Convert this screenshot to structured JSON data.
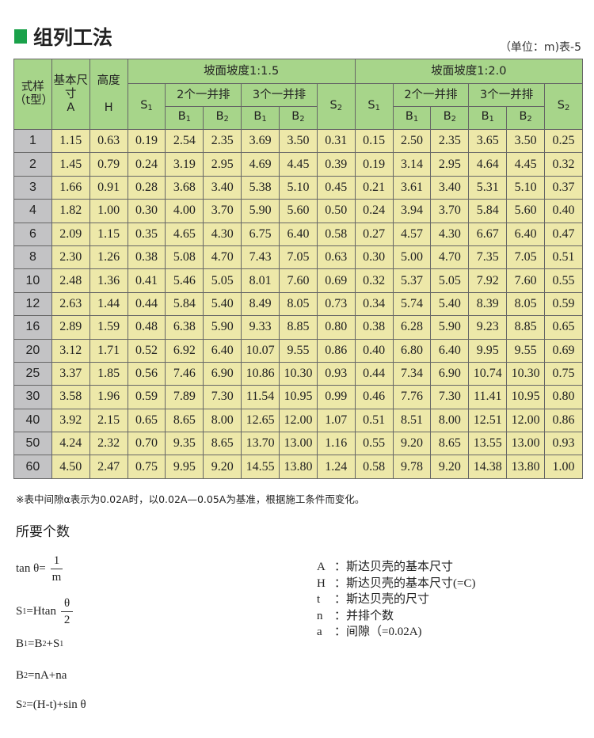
{
  "title": "组列工法",
  "unit_label": "（单位：m)表-5",
  "colors": {
    "accent": "#1aa14a",
    "header_bg": "#a7d58a",
    "cell_bg": "#ede8a9",
    "first_col_bg": "#c3c3c5"
  },
  "table": {
    "headers": {
      "type": "式样（t型）",
      "size_top": "基本尺寸",
      "size_sym": "A",
      "height_top": "高度",
      "height_sym": "H",
      "slope1": "坡面坡度1:1.5",
      "slope2": "坡面坡度1:2.0",
      "row2": "2个一并排",
      "row3": "3个一并排",
      "S": "S",
      "B": "B",
      "one": "1",
      "two": "2"
    },
    "rows": [
      [
        "1",
        "1.15",
        "0.63",
        "0.19",
        "2.54",
        "2.35",
        "3.69",
        "3.50",
        "0.31",
        "0.15",
        "2.50",
        "2.35",
        "3.65",
        "3.50",
        "0.25"
      ],
      [
        "2",
        "1.45",
        "0.79",
        "0.24",
        "3.19",
        "2.95",
        "4.69",
        "4.45",
        "0.39",
        "0.19",
        "3.14",
        "2.95",
        "4.64",
        "4.45",
        "0.32"
      ],
      [
        "3",
        "1.66",
        "0.91",
        "0.28",
        "3.68",
        "3.40",
        "5.38",
        "5.10",
        "0.45",
        "0.21",
        "3.61",
        "3.40",
        "5.31",
        "5.10",
        "0.37"
      ],
      [
        "4",
        "1.82",
        "1.00",
        "0.30",
        "4.00",
        "3.70",
        "5.90",
        "5.60",
        "0.50",
        "0.24",
        "3.94",
        "3.70",
        "5.84",
        "5.60",
        "0.40"
      ],
      [
        "6",
        "2.09",
        "1.15",
        "0.35",
        "4.65",
        "4.30",
        "6.75",
        "6.40",
        "0.58",
        "0.27",
        "4.57",
        "4.30",
        "6.67",
        "6.40",
        "0.47"
      ],
      [
        "8",
        "2.30",
        "1.26",
        "0.38",
        "5.08",
        "4.70",
        "7.43",
        "7.05",
        "0.63",
        "0.30",
        "5.00",
        "4.70",
        "7.35",
        "7.05",
        "0.51"
      ],
      [
        "10",
        "2.48",
        "1.36",
        "0.41",
        "5.46",
        "5.05",
        "8.01",
        "7.60",
        "0.69",
        "0.32",
        "5.37",
        "5.05",
        "7.92",
        "7.60",
        "0.55"
      ],
      [
        "12",
        "2.63",
        "1.44",
        "0.44",
        "5.84",
        "5.40",
        "8.49",
        "8.05",
        "0.73",
        "0.34",
        "5.74",
        "5.40",
        "8.39",
        "8.05",
        "0.59"
      ],
      [
        "16",
        "2.89",
        "1.59",
        "0.48",
        "6.38",
        "5.90",
        "9.33",
        "8.85",
        "0.80",
        "0.38",
        "6.28",
        "5.90",
        "9.23",
        "8.85",
        "0.65"
      ],
      [
        "20",
        "3.12",
        "1.71",
        "0.52",
        "6.92",
        "6.40",
        "10.07",
        "9.55",
        "0.86",
        "0.40",
        "6.80",
        "6.40",
        "9.95",
        "9.55",
        "0.69"
      ],
      [
        "25",
        "3.37",
        "1.85",
        "0.56",
        "7.46",
        "6.90",
        "10.86",
        "10.30",
        "0.93",
        "0.44",
        "7.34",
        "6.90",
        "10.74",
        "10.30",
        "0.75"
      ],
      [
        "30",
        "3.58",
        "1.96",
        "0.59",
        "7.89",
        "7.30",
        "11.54",
        "10.95",
        "0.99",
        "0.46",
        "7.76",
        "7.30",
        "11.41",
        "10.95",
        "0.80"
      ],
      [
        "40",
        "3.92",
        "2.15",
        "0.65",
        "8.65",
        "8.00",
        "12.65",
        "12.00",
        "1.07",
        "0.51",
        "8.51",
        "8.00",
        "12.51",
        "12.00",
        "0.86"
      ],
      [
        "50",
        "4.24",
        "2.32",
        "0.70",
        "9.35",
        "8.65",
        "13.70",
        "13.00",
        "1.16",
        "0.55",
        "9.20",
        "8.65",
        "13.55",
        "13.00",
        "0.93"
      ],
      [
        "60",
        "4.50",
        "2.47",
        "0.75",
        "9.95",
        "9.20",
        "14.55",
        "13.80",
        "1.24",
        "0.58",
        "9.78",
        "9.20",
        "14.38",
        "13.80",
        "1.00"
      ]
    ]
  },
  "note": "※表中间隙α表示为0.02A时，以0.02A—0.05A为基准，根据施工条件而变化。",
  "section_title": "所要个数",
  "formulas": {
    "f1_lhs": "tan θ=",
    "f1_num": "1",
    "f1_den": "m",
    "f2_lhs": "S",
    "f2_sub": "1",
    "f2_rest": "=Htan",
    "f2_num": "θ",
    "f2_den": "2",
    "f3": [
      "B",
      "1",
      "=B",
      "2",
      "+S",
      "1"
    ],
    "f4": [
      "B",
      "2",
      "=nA+na"
    ],
    "f5": [
      "S",
      "2",
      "=(H-t)+sin θ"
    ]
  },
  "legend": [
    {
      "key": "A",
      "sep": "：",
      "text": "斯达贝壳的基本尺寸"
    },
    {
      "key": "H",
      "sep": "：",
      "text": "斯达贝壳的基本尺寸(=C)"
    },
    {
      "key": "t",
      "sep": "：",
      "text": "斯达贝壳的尺寸"
    },
    {
      "key": "n",
      "sep": "：",
      "text": "并排个数"
    },
    {
      "key": "a",
      "sep": "：",
      "text": "间隙（=0.02A)"
    }
  ]
}
